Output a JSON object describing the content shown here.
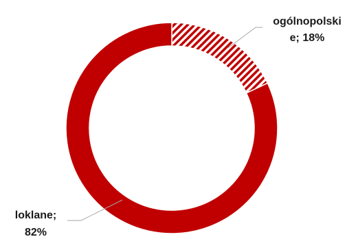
{
  "chart_data": {
    "type": "pie",
    "variant": "doughnut",
    "categories": [
      "ogólnopolskie",
      "loklane"
    ],
    "values": [
      18,
      82
    ],
    "unit": "%",
    "colors": [
      "#c00000",
      "#c00000"
    ],
    "fill_styles": [
      "diagonal-hatch",
      "solid"
    ],
    "legend": "none",
    "labels": [
      {
        "lines": [
          "ogólnopolski",
          "e; 18%"
        ]
      },
      {
        "lines": [
          "loklane;",
          "82%"
        ]
      }
    ]
  }
}
